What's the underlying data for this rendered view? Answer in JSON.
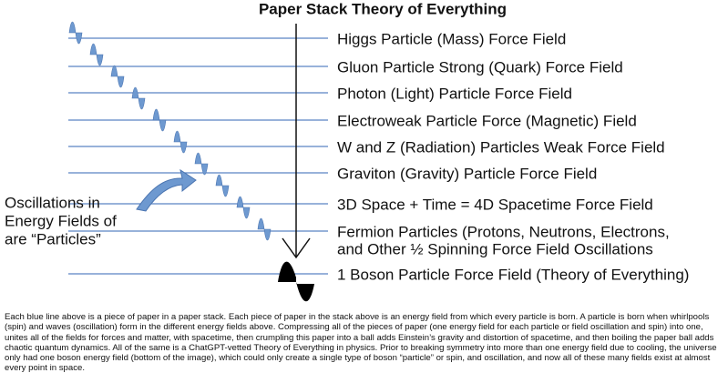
{
  "title": "Paper Stack Theory of Everything",
  "fields": [
    {
      "lines": [
        "Higgs Particle (Mass) Force Field"
      ]
    },
    {
      "lines": [
        "Gluon Particle Strong (Quark) Force Field"
      ]
    },
    {
      "lines": [
        "Photon (Light) Particle Force Field"
      ]
    },
    {
      "lines": [
        "Electroweak Particle Force (Magnetic) Field"
      ]
    },
    {
      "lines": [
        "W and Z (Radiation) Particles Weak Force Field"
      ]
    },
    {
      "lines": [
        "Graviton (Gravity) Particle Force Field"
      ]
    },
    {
      "lines": [
        "3D Space + Time = 4D Spacetime Force Field"
      ]
    },
    {
      "lines": [
        "Fermion Particles (Protons, Neutrons, Electrons,",
        "and Other ½ Spinning Force Field Oscillations"
      ]
    },
    {
      "lines": [
        "1 Boson Particle Force Field (Theory of Everything)"
      ]
    }
  ],
  "note": {
    "lines": [
      "Oscillations in",
      "Energy Fields of",
      "are “Particles”"
    ]
  },
  "caption": "Each blue line above is a piece of paper in a paper stack. Each piece of paper in the stack above is an energy field from which every particle is born. A particle is born when whirlpools (spin) and waves (oscillation) form in the different energy fields above. Compressing all of the pieces of paper (one energy field for each particle or field oscillation and spin) into one, unites all of the fields for forces and matter, with spacetime, then crumpling this paper into a ball adds Einstein’s gravity and distortion of spacetime, and then boiling the paper ball adds chaotic quantum dynamics. All of the same is a ChatGPT-vetted Theory of Everything in physics. Prior to breaking symmetry into more than one energy field due to cooling, the universe only had one boson energy field (bottom of the image), which could only create a single type of boson “particle” or spin, and oscillation, and now all of these many fields exist at almost every point in space."
}
